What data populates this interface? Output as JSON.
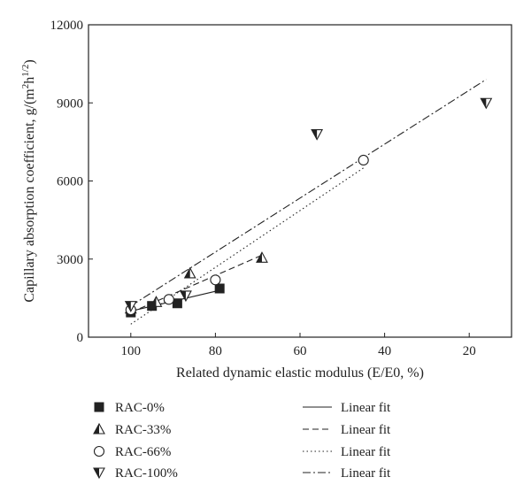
{
  "chart_data": {
    "type": "scatter",
    "xlabel": "Related dynamic elastic modulus (E/E0, %)",
    "ylabel_main": "Capillary absorption coefficient, g/(m",
    "ylabel_sup1": "2",
    "ylabel_mid": "h",
    "ylabel_sup2": "1/2",
    "ylabel_end": ")",
    "xlim": [
      110,
      10
    ],
    "ylim": [
      0,
      12000
    ],
    "xticks": [
      100,
      80,
      60,
      40,
      20
    ],
    "yticks": [
      0,
      3000,
      6000,
      9000,
      12000
    ],
    "grid": false,
    "legend_position": "bottom",
    "series": [
      {
        "name": "RAC-0%",
        "marker": "square-filled",
        "points": [
          [
            100,
            950
          ],
          [
            95,
            1200
          ],
          [
            89,
            1300
          ],
          [
            79,
            1870
          ]
        ],
        "fit": {
          "name": "Linear fit",
          "dash": "solid",
          "x": [
            100,
            79
          ],
          "y": [
            1000,
            1800
          ]
        }
      },
      {
        "name": "RAC-33%",
        "marker": "triangle-up-half",
        "points": [
          [
            100,
            1100
          ],
          [
            94,
            1350
          ],
          [
            86,
            2450
          ],
          [
            69,
            3050
          ]
        ],
        "fit": {
          "name": "Linear fit",
          "dash": "dashed",
          "x": [
            100,
            69
          ],
          "y": [
            950,
            3150
          ]
        }
      },
      {
        "name": "RAC-66%",
        "marker": "circle-open",
        "points": [
          [
            100,
            1050
          ],
          [
            91,
            1450
          ],
          [
            80,
            2200
          ],
          [
            45,
            6800
          ]
        ],
        "fit": {
          "name": "Linear fit",
          "dash": "dotted",
          "x": [
            100,
            45
          ],
          "y": [
            500,
            6500
          ]
        }
      },
      {
        "name": "RAC-100%",
        "marker": "triangle-down-half",
        "points": [
          [
            100,
            1200
          ],
          [
            87,
            1600
          ],
          [
            56,
            7800
          ],
          [
            16,
            9000
          ]
        ],
        "fit": {
          "name": "Linear fit",
          "dash": "dashdot",
          "x": [
            100,
            16
          ],
          "y": [
            1200,
            9900
          ]
        }
      }
    ]
  }
}
